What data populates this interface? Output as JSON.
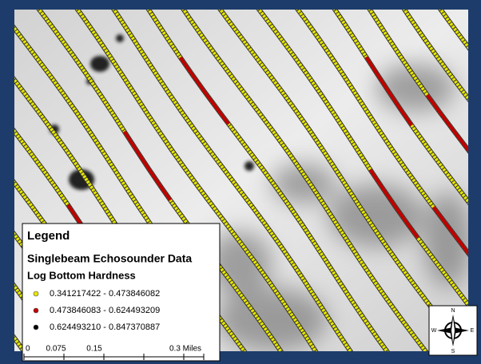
{
  "legend": {
    "title": "Legend",
    "layer": "Singlebeam Echosounder Data",
    "field": "Log Bottom Hardness",
    "classes": [
      {
        "label": "0.341217422 - 0.473846082",
        "color": "#e6e600"
      },
      {
        "label": "0.473846083 - 0.624493209",
        "color": "#c00000"
      },
      {
        "label": "0.624493210 - 0.847370887",
        "color": "#000000"
      }
    ]
  },
  "scale_bar": {
    "labels": [
      "0",
      "0.075",
      "0.15",
      "0.3 Miles"
    ]
  },
  "north_arrow": {
    "n": "N",
    "s": "S",
    "e": "E",
    "w": "W"
  }
}
